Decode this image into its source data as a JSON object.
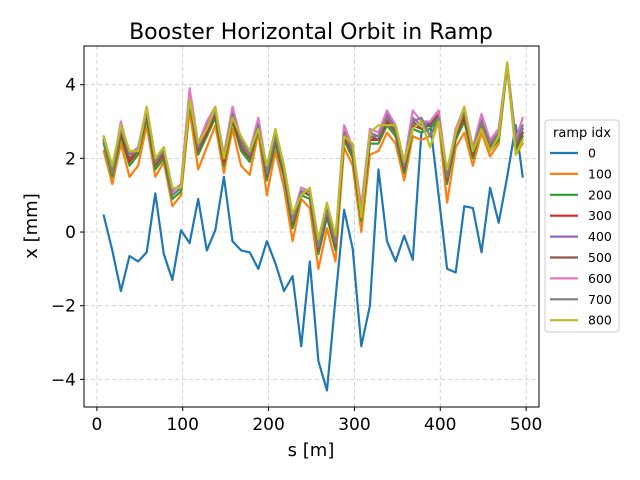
{
  "chart_data": {
    "type": "line",
    "title": "Booster Horizontal Orbit in Ramp",
    "xlabel": "s [m]",
    "ylabel": "x [mm]",
    "xlim": [
      -15,
      515
    ],
    "ylim": [
      -4.75,
      5.05
    ],
    "xticks": [
      0,
      100,
      200,
      300,
      400,
      500
    ],
    "xtick_labels": [
      "0",
      "100",
      "200",
      "300",
      "400",
      "500"
    ],
    "yticks": [
      -4,
      -2,
      0,
      2,
      4
    ],
    "ytick_labels": [
      "−4",
      "−2",
      "0",
      "2",
      "4"
    ],
    "grid": true,
    "legend": {
      "title": "ramp idx",
      "placement": "right-outside"
    },
    "x": [
      8,
      18,
      28,
      38,
      48,
      58,
      68,
      78,
      88,
      98,
      108,
      118,
      128,
      138,
      148,
      158,
      168,
      178,
      188,
      198,
      208,
      218,
      228,
      238,
      248,
      258,
      268,
      278,
      288,
      298,
      308,
      318,
      328,
      338,
      348,
      358,
      368,
      378,
      388,
      398,
      408,
      418,
      428,
      438,
      448,
      458,
      468,
      478,
      488,
      496
    ],
    "series": [
      {
        "name": "0",
        "color": "#1f77b4",
        "values": [
          0.45,
          -0.5,
          -1.6,
          -0.65,
          -0.8,
          -0.55,
          1.05,
          -0.6,
          -1.3,
          0.05,
          -0.3,
          0.9,
          -0.5,
          0.05,
          1.5,
          -0.25,
          -0.5,
          -0.55,
          -1.0,
          -0.25,
          -0.85,
          -1.6,
          -1.2,
          -3.1,
          -0.8,
          -3.5,
          -4.3,
          -1.8,
          0.6,
          -0.45,
          -3.1,
          -2.0,
          1.7,
          -0.25,
          -0.8,
          -0.1,
          -0.75,
          2.7,
          3.0,
          1.0,
          -1.0,
          -1.1,
          0.7,
          0.65,
          -0.55,
          1.2,
          0.25,
          1.5,
          2.9,
          1.5
        ]
      },
      {
        "name": "100",
        "color": "#ff7f0e",
        "values": [
          2.2,
          1.3,
          2.4,
          1.5,
          1.8,
          2.9,
          1.5,
          1.9,
          0.7,
          1.0,
          3.3,
          1.7,
          2.3,
          2.9,
          1.6,
          2.8,
          1.8,
          1.55,
          2.7,
          1.0,
          2.2,
          1.2,
          -0.25,
          0.9,
          0.65,
          -1.0,
          0.1,
          -0.8,
          2.3,
          1.8,
          0.0,
          2.1,
          2.2,
          2.7,
          2.4,
          1.4,
          2.6,
          2.5,
          2.6,
          3.0,
          0.8,
          2.3,
          2.7,
          1.8,
          2.7,
          2.05,
          2.4,
          4.5,
          2.1,
          2.4
        ]
      },
      {
        "name": "200",
        "color": "#2ca02c",
        "values": [
          2.4,
          1.5,
          2.6,
          1.8,
          2.1,
          3.1,
          1.7,
          2.0,
          0.9,
          1.1,
          3.5,
          2.1,
          2.6,
          3.1,
          1.8,
          3.0,
          2.2,
          1.9,
          2.8,
          1.4,
          2.4,
          1.5,
          0.1,
          1.0,
          0.9,
          -0.6,
          0.4,
          -0.5,
          2.5,
          2.0,
          0.3,
          2.4,
          2.4,
          2.9,
          2.6,
          1.6,
          2.8,
          2.7,
          2.8,
          3.1,
          1.3,
          2.5,
          3.0,
          2.0,
          2.9,
          2.2,
          2.5,
          4.5,
          2.2,
          2.6
        ]
      },
      {
        "name": "300",
        "color": "#d62728",
        "values": [
          2.5,
          1.6,
          2.7,
          1.9,
          2.2,
          3.2,
          1.8,
          2.1,
          1.0,
          1.2,
          3.6,
          2.2,
          2.7,
          3.2,
          1.9,
          3.1,
          2.3,
          2.0,
          2.9,
          1.5,
          2.5,
          1.6,
          0.2,
          1.1,
          1.0,
          -0.5,
          0.5,
          -0.4,
          2.6,
          2.1,
          0.4,
          2.5,
          2.5,
          3.0,
          2.7,
          1.7,
          2.9,
          2.8,
          2.9,
          3.2,
          1.4,
          2.6,
          3.1,
          2.1,
          3.0,
          2.3,
          2.6,
          4.55,
          2.3,
          2.7
        ]
      },
      {
        "name": "400",
        "color": "#9467bd",
        "values": [
          2.6,
          1.7,
          2.9,
          2.1,
          2.3,
          3.3,
          1.9,
          2.2,
          1.1,
          1.3,
          3.8,
          2.3,
          2.9,
          3.3,
          2.1,
          3.3,
          2.4,
          2.1,
          3.0,
          1.6,
          2.6,
          1.7,
          0.3,
          1.2,
          1.1,
          -0.4,
          0.6,
          -0.3,
          2.8,
          2.2,
          0.6,
          2.7,
          2.6,
          3.2,
          2.8,
          1.8,
          3.1,
          2.9,
          3.0,
          3.3,
          1.5,
          2.7,
          3.3,
          2.2,
          3.1,
          2.4,
          2.7,
          4.6,
          2.4,
          2.8
        ]
      },
      {
        "name": "500",
        "color": "#8c564b",
        "values": [
          2.5,
          1.6,
          2.8,
          2.0,
          2.2,
          3.2,
          1.8,
          2.2,
          1.0,
          1.2,
          3.7,
          2.2,
          2.8,
          3.2,
          2.0,
          3.2,
          2.3,
          2.0,
          2.9,
          1.5,
          2.5,
          1.6,
          0.2,
          1.1,
          1.0,
          -0.5,
          0.5,
          -0.4,
          2.7,
          2.1,
          0.5,
          2.6,
          2.5,
          3.1,
          2.7,
          1.7,
          3.0,
          2.8,
          2.9,
          3.2,
          1.4,
          2.6,
          3.2,
          2.1,
          3.0,
          2.3,
          2.6,
          4.55,
          2.3,
          2.7
        ]
      },
      {
        "name": "600",
        "color": "#e377c2",
        "values": [
          2.6,
          1.7,
          3.0,
          2.1,
          2.3,
          3.4,
          2.0,
          2.3,
          1.1,
          1.3,
          3.9,
          2.4,
          3.0,
          3.4,
          2.1,
          3.4,
          2.5,
          2.2,
          3.1,
          1.7,
          2.7,
          1.8,
          0.4,
          1.2,
          1.1,
          -0.3,
          0.7,
          -0.2,
          2.9,
          2.3,
          0.7,
          2.8,
          2.7,
          3.3,
          2.9,
          1.9,
          3.3,
          3.0,
          3.0,
          3.3,
          1.6,
          2.8,
          3.4,
          2.3,
          3.2,
          2.5,
          2.8,
          4.6,
          2.5,
          3.1
        ]
      },
      {
        "name": "700",
        "color": "#7f7f7f",
        "values": [
          2.5,
          1.6,
          2.8,
          2.1,
          2.2,
          3.3,
          1.9,
          2.2,
          1.0,
          1.2,
          3.6,
          2.3,
          2.8,
          3.3,
          2.0,
          3.2,
          2.5,
          2.1,
          2.9,
          1.6,
          2.6,
          1.7,
          0.3,
          1.1,
          1.1,
          -0.4,
          0.6,
          -0.3,
          2.7,
          2.2,
          0.5,
          2.6,
          2.6,
          3.1,
          2.8,
          1.8,
          3.0,
          3.1,
          2.6,
          3.1,
          1.5,
          2.7,
          3.3,
          2.2,
          3.0,
          2.4,
          2.7,
          4.55,
          2.4,
          2.9
        ]
      },
      {
        "name": "800",
        "color": "#bcbd22",
        "values": [
          2.6,
          1.8,
          2.9,
          2.2,
          2.2,
          3.4,
          2.0,
          2.3,
          1.2,
          1.2,
          3.6,
          2.4,
          2.8,
          3.4,
          2.0,
          3.1,
          2.6,
          2.2,
          2.8,
          1.8,
          2.8,
          1.8,
          0.5,
          1.0,
          1.2,
          -0.2,
          0.8,
          -0.1,
          2.6,
          2.4,
          0.4,
          2.7,
          2.9,
          2.9,
          2.9,
          1.9,
          2.8,
          3.0,
          2.3,
          3.0,
          1.7,
          2.7,
          3.4,
          2.2,
          2.8,
          2.2,
          2.6,
          4.6,
          2.1,
          2.5
        ]
      }
    ]
  }
}
